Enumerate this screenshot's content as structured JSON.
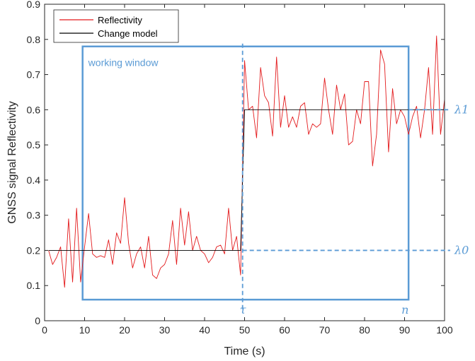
{
  "chart_data": {
    "type": "line",
    "xlabel": "Time (s)",
    "ylabel": "GNSS signal Reflectivity",
    "xlim": [
      0,
      100
    ],
    "ylim": [
      0,
      0.9
    ],
    "xticks": [
      "0",
      "10",
      "20",
      "30",
      "40",
      "50",
      "60",
      "70",
      "80",
      "90",
      "100"
    ],
    "yticks": [
      "0",
      "0.1",
      "0.2",
      "0.3",
      "0.4",
      "0.5",
      "0.6",
      "0.7",
      "0.8",
      "0.9"
    ],
    "grid": false,
    "legend_position": "top-left",
    "series": [
      {
        "name": "Reflectivity",
        "color": "#e31a1c",
        "x": [
          1,
          2,
          3,
          4,
          5,
          6,
          7,
          8,
          9,
          10,
          11,
          12,
          13,
          14,
          15,
          16,
          17,
          18,
          19,
          20,
          21,
          22,
          23,
          24,
          25,
          26,
          27,
          28,
          29,
          30,
          31,
          32,
          33,
          34,
          35,
          36,
          37,
          38,
          39,
          40,
          41,
          42,
          43,
          44,
          45,
          46,
          47,
          48,
          49,
          50,
          51,
          52,
          53,
          54,
          55,
          56,
          57,
          58,
          59,
          60,
          61,
          62,
          63,
          64,
          65,
          66,
          67,
          68,
          69,
          70,
          71,
          72,
          73,
          74,
          75,
          76,
          77,
          78,
          79,
          80,
          81,
          82,
          83,
          84,
          85,
          86,
          87,
          88,
          89,
          90,
          91,
          92,
          93,
          94,
          95,
          96,
          97,
          98,
          99,
          100
        ],
        "y": [
          0.2,
          0.16,
          0.18,
          0.21,
          0.095,
          0.29,
          0.11,
          0.32,
          0.11,
          0.21,
          0.305,
          0.19,
          0.18,
          0.185,
          0.18,
          0.23,
          0.16,
          0.25,
          0.22,
          0.35,
          0.22,
          0.15,
          0.19,
          0.21,
          0.15,
          0.24,
          0.13,
          0.12,
          0.15,
          0.16,
          0.19,
          0.285,
          0.16,
          0.32,
          0.215,
          0.31,
          0.2,
          0.24,
          0.2,
          0.19,
          0.165,
          0.18,
          0.21,
          0.215,
          0.19,
          0.32,
          0.2,
          0.24,
          0.13,
          0.74,
          0.6,
          0.61,
          0.52,
          0.72,
          0.64,
          0.62,
          0.525,
          0.75,
          0.55,
          0.64,
          0.55,
          0.58,
          0.55,
          0.61,
          0.62,
          0.53,
          0.56,
          0.55,
          0.56,
          0.69,
          0.6,
          0.53,
          0.67,
          0.6,
          0.645,
          0.5,
          0.51,
          0.6,
          0.56,
          0.68,
          0.68,
          0.44,
          0.53,
          0.77,
          0.73,
          0.48,
          0.66,
          0.56,
          0.6,
          0.58,
          0.53,
          0.58,
          0.61,
          0.52,
          0.6,
          0.72,
          0.53,
          0.81,
          0.53,
          0.63
        ]
      },
      {
        "name": "Change model",
        "color": "#000000",
        "x": [
          1,
          49,
          50,
          100
        ],
        "y": [
          0.2,
          0.2,
          0.6,
          0.6
        ]
      }
    ],
    "annotations": {
      "window_label": "working window",
      "tau": "τ",
      "n": "n",
      "lambda0": "λ0",
      "lambda1": "λ1",
      "window_x": [
        9.5,
        91
      ],
      "window_y": [
        0.06,
        0.78
      ],
      "tau_x": 49.5,
      "lambda0_y": 0.2,
      "lambda1_y": 0.6,
      "accent_color": "#5b9bd5"
    }
  }
}
